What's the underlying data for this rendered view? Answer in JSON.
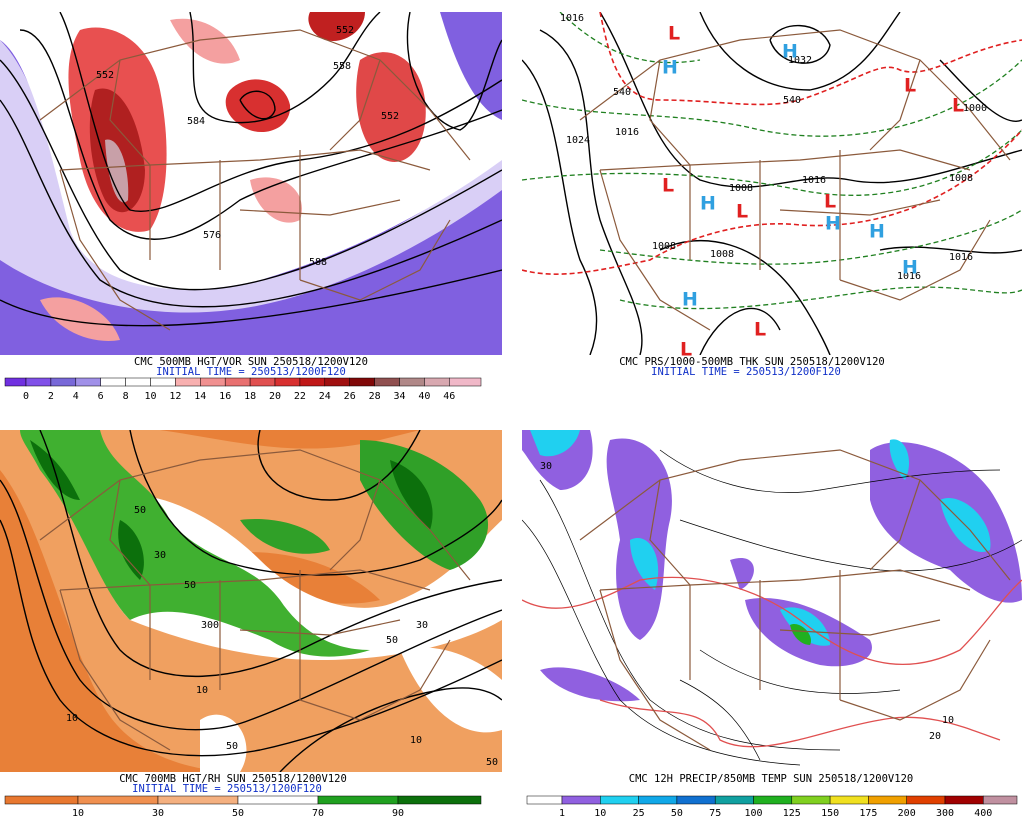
{
  "panels": [
    {
      "caption": "CMC 500MB HGT/VOR SUN 250518/1200V120",
      "initial_time": "INITIAL TIME = 250513/1200F120",
      "contour_labels": [
        552,
        558,
        584,
        552,
        576,
        588,
        552
      ],
      "colorbar": {
        "labels": [
          0,
          2,
          4,
          6,
          8,
          10,
          12,
          14,
          16,
          18,
          20,
          22,
          24,
          26,
          28,
          34,
          40,
          46
        ],
        "colors": [
          "#7030e0",
          "#8050e8",
          "#7868d8",
          "#a090e8",
          "#ffffff",
          "#ffffff",
          "#ffffff",
          "#f8b0b0",
          "#f09090",
          "#e87070",
          "#e05050",
          "#d83030",
          "#c01818",
          "#a01010",
          "#800808",
          "#905050",
          "#b08888",
          "#d8a8b0",
          "#f0b8c8"
        ]
      }
    },
    {
      "caption": "CMC PRS/1000-500MB THK SUN 250518/1200V120",
      "initial_time": "INITIAL TIME = 250513/1200F120",
      "contour_labels": [
        1016,
        1032,
        1000,
        1024,
        1016,
        1008,
        1016,
        1008,
        1008,
        1008,
        1016,
        1016,
        540,
        540
      ],
      "centers": [
        "L",
        "H",
        "H",
        "L",
        "L",
        "L",
        "H",
        "L",
        "L",
        "H",
        "H",
        "H",
        "H",
        "L",
        "L"
      ],
      "high_color": "#30a0e0",
      "low_color": "#e02020"
    },
    {
      "caption": "CMC 700MB HGT/RH SUN 250518/1200V120",
      "initial_time": "INITIAL TIME = 250513/1200F120",
      "contour_labels": [
        50,
        30,
        50,
        300,
        10,
        50,
        10,
        50,
        30,
        10,
        50
      ],
      "colorbar": {
        "labels": [
          10,
          30,
          50,
          70,
          90
        ],
        "colors": [
          "#e87830",
          "#f09050",
          "#f4b080",
          "#ffffff",
          "#20a020",
          "#0c700c"
        ]
      }
    },
    {
      "caption": "CMC 12H PRECIP/850MB TEMP SUN 250518/1200V120",
      "contour_labels": [
        30,
        10,
        20
      ],
      "colorbar": {
        "labels": [
          1,
          10,
          25,
          50,
          75,
          100,
          125,
          150,
          175,
          200,
          300,
          400
        ],
        "colors": [
          "#ffffff",
          "#9060e0",
          "#20d0f0",
          "#10a8e8",
          "#1070d0",
          "#10a0a0",
          "#20b020",
          "#80d020",
          "#f0e020",
          "#f0a000",
          "#e04000",
          "#a00000",
          "#c090a0"
        ]
      }
    }
  ]
}
